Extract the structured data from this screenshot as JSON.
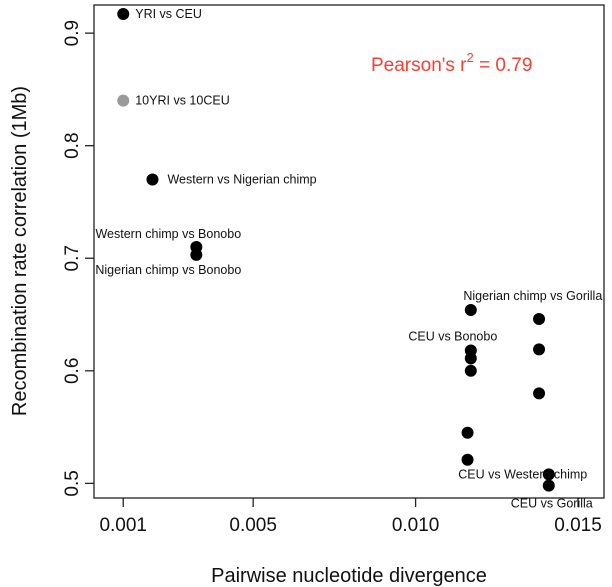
{
  "chart_data": {
    "type": "scatter",
    "title": "",
    "xlabel": "Pairwise nucleotide divergence",
    "ylabel": "Recombination rate correlation (1Mb)",
    "xlim": [
      0.0001,
      0.0158
    ],
    "ylim": [
      0.487,
      0.925
    ],
    "xticks": [
      0.001,
      0.005,
      0.01,
      0.015
    ],
    "xtick_labels": [
      "0.001",
      "0.005",
      "0.010",
      "0.015"
    ],
    "yticks": [
      0.5,
      0.6,
      0.7,
      0.8,
      0.9
    ],
    "ytick_labels": [
      "0.5",
      "0.6",
      "0.7",
      "0.8",
      "0.9"
    ],
    "grid": false,
    "annotation": {
      "base": "Pearson's r",
      "sup": "2",
      "rest": " = 0.79",
      "color": "#ff3b2f"
    },
    "points": [
      {
        "x": 0.001,
        "y": 0.917,
        "color": "#000000",
        "label": "YRI vs CEU"
      },
      {
        "x": 0.001,
        "y": 0.84,
        "color": "#9a9a9a",
        "label": "10YRI vs 10CEU"
      },
      {
        "x": 0.0019,
        "y": 0.77,
        "color": "#000000",
        "label": "Western vs Nigerian chimp"
      },
      {
        "x": 0.00325,
        "y": 0.71,
        "color": "#000000",
        "label": "Western chimp vs Bonobo"
      },
      {
        "x": 0.00325,
        "y": 0.703,
        "color": "#000000",
        "label": "Nigerian chimp vs Bonobo"
      },
      {
        "x": 0.0117,
        "y": 0.654,
        "color": "#000000",
        "label": "Nigerian chimp vs Gorilla"
      },
      {
        "x": 0.0117,
        "y": 0.618,
        "color": "#000000",
        "label": "CEU vs Bonobo"
      },
      {
        "x": 0.0117,
        "y": 0.611,
        "color": "#000000",
        "label": ""
      },
      {
        "x": 0.0117,
        "y": 0.6,
        "color": "#000000",
        "label": ""
      },
      {
        "x": 0.0116,
        "y": 0.545,
        "color": "#000000",
        "label": ""
      },
      {
        "x": 0.0116,
        "y": 0.521,
        "color": "#000000",
        "label": ""
      },
      {
        "x": 0.0138,
        "y": 0.646,
        "color": "#000000",
        "label": ""
      },
      {
        "x": 0.0138,
        "y": 0.619,
        "color": "#000000",
        "label": ""
      },
      {
        "x": 0.0138,
        "y": 0.58,
        "color": "#000000",
        "label": ""
      },
      {
        "x": 0.0141,
        "y": 0.508,
        "color": "#000000",
        "label": "CEU vs Western chimp"
      },
      {
        "x": 0.0141,
        "y": 0.498,
        "color": "#000000",
        "label": "CEU vs Gorilla"
      }
    ]
  }
}
